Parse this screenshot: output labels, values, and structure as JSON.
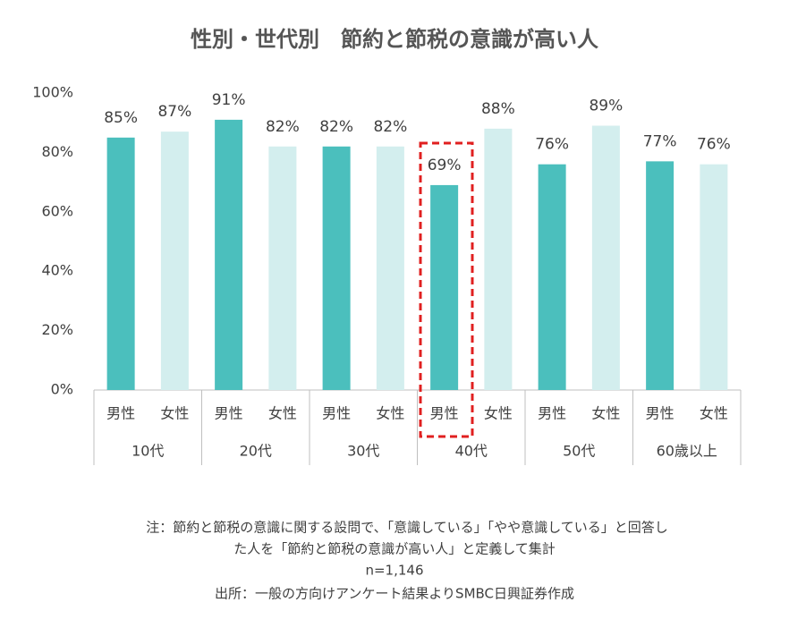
{
  "chart_data": {
    "type": "bar",
    "title": "性別・世代別　節約と節税の意識が高い人",
    "categories": [
      "10代",
      "20代",
      "30代",
      "40代",
      "50代",
      "60歳以上"
    ],
    "series": [
      {
        "name": "男性",
        "color": "#4bbfbd",
        "values": [
          85,
          91,
          82,
          69,
          76,
          77
        ],
        "value_labels": [
          "85%",
          "91%",
          "82%",
          "69%",
          "76%",
          "77%"
        ]
      },
      {
        "name": "女性",
        "color": "#d3eeee",
        "values": [
          87,
          82,
          82,
          88,
          89,
          76
        ],
        "value_labels": [
          "87%",
          "82%",
          "82%",
          "88%",
          "89%",
          "76%"
        ]
      }
    ],
    "ylim": [
      0,
      100
    ],
    "yticks": [
      {
        "value": 0,
        "label": "0%"
      },
      {
        "value": 20,
        "label": "20%"
      },
      {
        "value": 40,
        "label": "40%"
      },
      {
        "value": 60,
        "label": "60%"
      },
      {
        "value": 80,
        "label": "80%"
      },
      {
        "value": 100,
        "label": "100%"
      }
    ],
    "grid": false,
    "notes": [
      "注：節約と節税の意識に関する設問で、「意識している」「やや意識している」と回答し",
      "た人を「節約と節税の意識が高い人」と定義して集計",
      "n=1,146",
      "出所：一般の方向けアンケート結果よりSMBC日興証券作成"
    ]
  }
}
